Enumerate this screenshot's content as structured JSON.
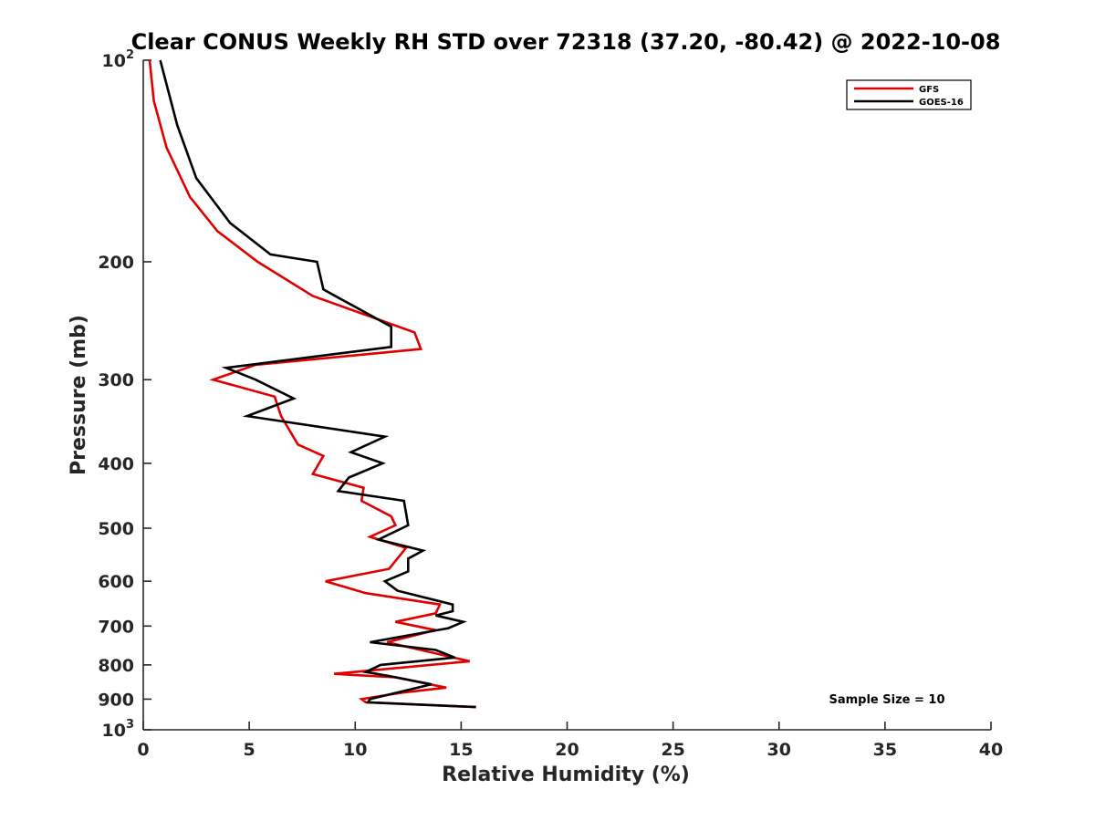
{
  "chart_data": {
    "type": "line",
    "title": "Clear CONUS Weekly RH STD over 72318 (37.20, -80.42) @ 2022-10-08",
    "xlabel": "Relative Humidity (%)",
    "ylabel": "Pressure (mb)",
    "xlim": [
      0,
      40
    ],
    "ylim": [
      100,
      1000
    ],
    "yscale": "log",
    "y_reversed": true,
    "xticks": [
      0,
      5,
      10,
      15,
      20,
      25,
      30,
      35,
      40
    ],
    "xtick_labels": [
      "0",
      "5",
      "10",
      "15",
      "20",
      "25",
      "30",
      "35",
      "40"
    ],
    "yticks": [
      {
        "value": 100,
        "base": "10",
        "exp": "2"
      },
      {
        "value": 200,
        "label": "200"
      },
      {
        "value": 300,
        "label": "300"
      },
      {
        "value": 400,
        "label": "400"
      },
      {
        "value": 500,
        "label": "500"
      },
      {
        "value": 600,
        "label": "600"
      },
      {
        "value": 700,
        "label": "700"
      },
      {
        "value": 800,
        "label": "800"
      },
      {
        "value": 900,
        "label": "900"
      },
      {
        "value": 1000,
        "base": "10",
        "exp": "3"
      }
    ],
    "grid": false,
    "legend_position": "top-right",
    "annotation": "Sample Size = 10",
    "series": [
      {
        "name": "GFS",
        "color": "#e00000",
        "points": [
          [
            0.3,
            100
          ],
          [
            0.5,
            115
          ],
          [
            1.1,
            135
          ],
          [
            2.2,
            160
          ],
          [
            3.5,
            180
          ],
          [
            5.4,
            200
          ],
          [
            8.0,
            225
          ],
          [
            12.8,
            255
          ],
          [
            13.1,
            270
          ],
          [
            5.3,
            285
          ],
          [
            3.3,
            300
          ],
          [
            6.2,
            318
          ],
          [
            6.5,
            340
          ],
          [
            7.3,
            375
          ],
          [
            8.5,
            390
          ],
          [
            8.0,
            415
          ],
          [
            10.4,
            435
          ],
          [
            10.3,
            455
          ],
          [
            11.7,
            480
          ],
          [
            11.9,
            495
          ],
          [
            10.7,
            515
          ],
          [
            12.4,
            535
          ],
          [
            11.6,
            575
          ],
          [
            8.6,
            600
          ],
          [
            10.5,
            625
          ],
          [
            14.0,
            650
          ],
          [
            13.8,
            670
          ],
          [
            11.9,
            690
          ],
          [
            13.8,
            710
          ],
          [
            11.5,
            740
          ],
          [
            15.4,
            790
          ],
          [
            9.0,
            825
          ],
          [
            11.9,
            835
          ],
          [
            14.3,
            865
          ],
          [
            12.2,
            880
          ],
          [
            10.3,
            900
          ],
          [
            10.5,
            910
          ],
          [
            15.7,
            925
          ]
        ]
      },
      {
        "name": "GOES-16",
        "color": "#000000",
        "points": [
          [
            0.8,
            100
          ],
          [
            1.6,
            125
          ],
          [
            2.5,
            150
          ],
          [
            4.1,
            175
          ],
          [
            6.0,
            195
          ],
          [
            8.2,
            200
          ],
          [
            8.5,
            220
          ],
          [
            11.7,
            250
          ],
          [
            11.7,
            268
          ],
          [
            3.9,
            288
          ],
          [
            5.3,
            300
          ],
          [
            7.1,
            320
          ],
          [
            4.9,
            340
          ],
          [
            11.4,
            365
          ],
          [
            9.8,
            385
          ],
          [
            11.3,
            400
          ],
          [
            9.7,
            420
          ],
          [
            9.2,
            440
          ],
          [
            12.3,
            455
          ],
          [
            12.5,
            495
          ],
          [
            11.1,
            520
          ],
          [
            13.2,
            540
          ],
          [
            12.5,
            555
          ],
          [
            12.5,
            580
          ],
          [
            11.4,
            600
          ],
          [
            12.0,
            620
          ],
          [
            14.6,
            650
          ],
          [
            14.6,
            665
          ],
          [
            13.8,
            675
          ],
          [
            15.1,
            690
          ],
          [
            14.4,
            705
          ],
          [
            10.7,
            740
          ],
          [
            13.8,
            760
          ],
          [
            14.7,
            780
          ],
          [
            11.2,
            800
          ],
          [
            10.5,
            820
          ],
          [
            11.5,
            830
          ],
          [
            13.6,
            855
          ],
          [
            10.7,
            900
          ],
          [
            10.6,
            910
          ],
          [
            15.7,
            925
          ]
        ]
      }
    ]
  }
}
